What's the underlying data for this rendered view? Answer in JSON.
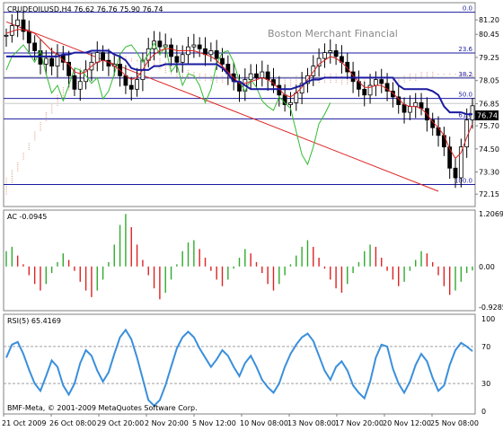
{
  "chart_data": {
    "type": "line",
    "panels": [
      {
        "name": "price",
        "header": "CRUDEOILUSD,H4  76.62 76.76 75.90 76.74",
        "watermark": "Boston Merchant Financial",
        "last_price": "76.74",
        "ylim": [
          71.6,
          82.0
        ],
        "y_ticks": [
          "81.20",
          "80.45",
          "79.25",
          "78.05",
          "76.85",
          "75.70",
          "74.50",
          "73.30",
          "72.15"
        ],
        "fib_levels": [
          {
            "label": "0.0",
            "value": 81.6
          },
          {
            "label": "23.6",
            "value": 79.48
          },
          {
            "label": "38.2",
            "value": 78.18
          },
          {
            "label": "50.0",
            "value": 77.12
          },
          {
            "label": "61.8",
            "value": 76.06
          },
          {
            "label": "100.0",
            "value": 72.65
          }
        ],
        "extra_levels": [
          78.22,
          76.86
        ],
        "close": [
          80.4,
          80.9,
          81.2,
          80.6,
          80.0,
          79.6,
          78.9,
          79.2,
          78.8,
          79.4,
          79.0,
          78.3,
          77.6,
          78.0,
          78.6,
          79.0,
          79.5,
          79.1,
          78.8,
          78.9,
          78.3,
          77.8,
          77.6,
          78.1,
          79.1,
          79.7,
          80.1,
          79.8,
          79.9,
          79.3,
          79.0,
          79.4,
          79.8,
          79.9,
          79.7,
          79.4,
          79.6,
          79.2,
          78.9,
          78.4,
          78.0,
          77.5,
          78.1,
          78.4,
          78.2,
          78.5,
          78.1,
          77.8,
          77.3,
          76.8,
          76.9,
          77.4,
          77.9,
          78.3,
          78.8,
          79.2,
          79.5,
          79.6,
          79.3,
          79.0,
          78.5,
          78.0,
          77.6,
          77.3,
          77.8,
          78.1,
          77.9,
          77.5,
          77.2,
          76.8,
          76.4,
          76.7,
          76.9,
          76.6,
          76.0,
          75.6,
          75.2,
          74.6,
          73.5,
          73.0,
          74.6,
          76.0,
          76.74
        ],
        "kijun": [
          79.3,
          79.3,
          79.3,
          79.3,
          79.3,
          79.3,
          79.3,
          79.3,
          79.3,
          79.3,
          79.4,
          79.4,
          79.5,
          79.5,
          79.5,
          79.6,
          79.6,
          79.6,
          79.6,
          79.4,
          79.3,
          79.1,
          78.7,
          78.6,
          78.6,
          78.6,
          78.8,
          78.8,
          78.9,
          78.9,
          78.9,
          78.9,
          78.9,
          78.9,
          78.9,
          78.9,
          78.9,
          78.9,
          78.7,
          78.4,
          78.0,
          78.0,
          77.8,
          77.6,
          77.6,
          77.6,
          77.6,
          77.6,
          77.6,
          77.6,
          77.6,
          77.7,
          77.8,
          78.0,
          78.1,
          78.1,
          78.2,
          78.2,
          78.2,
          78.2,
          78.2,
          78.2,
          78.2,
          78.2,
          78.2,
          78.2,
          78.2,
          78.2,
          78.2,
          77.8,
          77.6,
          77.6,
          77.6,
          77.6,
          77.6,
          77.5,
          77.3,
          76.7,
          76.4,
          76.4,
          76.4,
          76.3,
          76.3
        ],
        "tenkan": [
          80.5,
          80.6,
          80.7,
          80.7,
          80.6,
          80.5,
          80.2,
          79.9,
          79.6,
          79.4,
          79.1,
          78.9,
          78.5,
          78.4,
          78.5,
          78.8,
          79.0,
          79.1,
          79.0,
          78.8,
          78.6,
          78.3,
          78.1,
          78.2,
          78.6,
          79.1,
          79.4,
          79.6,
          79.7,
          79.7,
          79.6,
          79.6,
          79.6,
          79.6,
          79.5,
          79.4,
          79.3,
          79.1,
          78.8,
          78.5,
          78.2,
          77.9,
          77.9,
          78.0,
          78.1,
          78.2,
          78.1,
          77.9,
          77.6,
          77.3,
          77.2,
          77.4,
          77.7,
          78.1,
          78.5,
          78.9,
          79.1,
          79.3,
          79.2,
          79.0,
          78.7,
          78.3,
          78.0,
          77.7,
          77.7,
          77.8,
          77.8,
          77.6,
          77.4,
          77.1,
          76.8,
          76.7,
          76.7,
          76.6,
          76.3,
          75.9,
          75.6,
          75.2,
          74.5,
          74.0,
          74.3,
          75.1,
          75.8
        ],
        "chikou": [
          78.6,
          79.3,
          79.6,
          79.9,
          79.5,
          79.0,
          79.6,
          78.4,
          77.4,
          77.8,
          77.0,
          77.8,
          78.7,
          78.6,
          78.3,
          77.9,
          78.2,
          77.1,
          77.5,
          78.4,
          79.4,
          79.8,
          79.9,
          79.5,
          79.0,
          79.4,
          80.0,
          79.4,
          79.8,
          78.5,
          78.9,
          77.8,
          78.4,
          78.3,
          77.8,
          76.9,
          77.6,
          78.9,
          79.5,
          79.6,
          79.0,
          78.0,
          77.5,
          78.1,
          77.7,
          77.0,
          76.7,
          76.5,
          77.2,
          76.9,
          76.6,
          75.4,
          74.2,
          73.7,
          74.6,
          75.8,
          76.3,
          76.9
        ],
        "cloud_a": [
          73.0,
          73.4,
          73.8,
          74.3,
          74.8,
          75.4,
          75.9,
          76.4,
          76.8,
          77.3,
          77.7,
          78.0,
          78.4,
          78.7,
          78.9,
          79.1,
          79.3,
          79.4,
          79.5,
          79.5,
          79.4,
          79.3,
          79.2,
          79.1,
          79.2,
          79.3,
          79.3,
          79.2,
          79.0,
          78.8,
          78.6,
          78.6,
          78.6,
          78.5,
          78.4,
          78.4,
          78.3,
          78.3,
          78.3,
          78.2,
          78.2,
          78.1,
          78.2,
          78.3,
          78.4,
          78.4,
          78.4,
          78.3,
          78.3,
          78.2,
          78.2,
          78.3,
          78.3,
          78.3,
          78.3,
          78.4,
          78.4,
          78.4,
          78.4,
          78.3,
          78.3,
          78.2,
          78.2,
          78.2,
          78.1,
          78.1,
          78.1,
          78.2,
          78.2,
          78.2,
          78.3,
          78.4,
          78.4,
          78.5,
          78.5,
          78.5,
          78.4,
          78.4,
          78.3,
          78.3,
          78.2,
          78.2,
          78.2
        ],
        "cloud_b": [
          72.1,
          72.7,
          73.3,
          73.9,
          74.4,
          74.9,
          75.4,
          75.9,
          76.3,
          76.7,
          77.1,
          77.5,
          77.8,
          78.0,
          78.2,
          78.4,
          78.6,
          78.8,
          78.9,
          79.1,
          79.1,
          79.1,
          79.0,
          79.0,
          78.9,
          78.8,
          78.7,
          78.6,
          78.4,
          78.3,
          78.2,
          78.1,
          78.1,
          78.1,
          78.0,
          78.0,
          78.0,
          77.9,
          77.9,
          77.9,
          77.9,
          77.8,
          77.8,
          77.8,
          77.8,
          77.8,
          77.7,
          77.7,
          77.7,
          77.7,
          77.7,
          77.8,
          77.8,
          77.8,
          77.8,
          77.9,
          77.9,
          77.9,
          77.9,
          77.8,
          77.8,
          77.8,
          77.8,
          77.8,
          77.7,
          77.7,
          77.7,
          77.8,
          77.8,
          77.9,
          77.9,
          78.0,
          78.0,
          78.1,
          78.2,
          78.2,
          78.3,
          78.3,
          78.4,
          78.4,
          78.4,
          78.4,
          78.4
        ],
        "trendline": {
          "from": [
            0,
            81.1
          ],
          "to": [
            76,
            72.3
          ]
        }
      },
      {
        "name": "ac",
        "header": "AC -0.0945",
        "ylim": [
          -0.9285,
          1.2069
        ],
        "y_ticks": [
          "1.2069",
          "0.00",
          "-0.9285"
        ],
        "values": [
          0.35,
          0.45,
          0.25,
          0.05,
          -0.2,
          -0.4,
          -0.55,
          -0.4,
          -0.15,
          0.1,
          0.3,
          0.15,
          -0.1,
          -0.35,
          -0.55,
          -0.7,
          -0.55,
          -0.3,
          0.1,
          0.5,
          0.95,
          1.2,
          0.9,
          0.5,
          0.15,
          -0.2,
          -0.5,
          -0.75,
          -0.6,
          -0.3,
          0.05,
          0.35,
          0.55,
          0.6,
          0.4,
          0.2,
          -0.1,
          -0.3,
          -0.45,
          -0.3,
          -0.05,
          0.2,
          0.4,
          0.3,
          0.1,
          -0.15,
          -0.4,
          -0.55,
          -0.4,
          -0.2,
          0.05,
          0.25,
          0.45,
          0.6,
          0.45,
          0.2,
          -0.05,
          -0.3,
          -0.5,
          -0.6,
          -0.4,
          -0.15,
          0.1,
          0.35,
          0.5,
          0.45,
          0.2,
          -0.1,
          -0.3,
          -0.45,
          -0.35,
          -0.1,
          0.15,
          0.35,
          0.3,
          0.1,
          -0.2,
          -0.45,
          -0.65,
          -0.55,
          -0.35,
          -0.15,
          -0.09
        ]
      },
      {
        "name": "rsi",
        "header": "RSI(5) 65.4169",
        "ylim": [
          0,
          100
        ],
        "y_ticks": [
          "100",
          "70",
          "30",
          "0"
        ],
        "levels": [
          70,
          30
        ],
        "values": [
          58,
          72,
          75,
          62,
          45,
          30,
          22,
          38,
          55,
          48,
          28,
          18,
          30,
          52,
          66,
          60,
          44,
          32,
          42,
          62,
          80,
          88,
          78,
          58,
          35,
          12,
          6,
          12,
          28,
          48,
          68,
          80,
          86,
          80,
          68,
          58,
          48,
          56,
          66,
          60,
          48,
          38,
          52,
          60,
          48,
          34,
          26,
          20,
          30,
          48,
          62,
          72,
          80,
          84,
          76,
          60,
          44,
          34,
          48,
          54,
          44,
          28,
          20,
          14,
          32,
          58,
          72,
          70,
          46,
          30,
          20,
          32,
          50,
          62,
          54,
          36,
          22,
          28,
          50,
          66,
          74,
          70,
          65
        ]
      }
    ],
    "x_ticks": [
      "21 Oct 2009",
      "26 Oct 08:00",
      "29 Oct 20:00",
      "2 Nov 20:00",
      "5 Nov 12:00",
      "10 Nov 08:00",
      "13 Nov 08:00",
      "17 Nov 20:00",
      "20 Nov 12:00",
      "25 Nov 08:00"
    ],
    "copyright": "BMF-Meta, © 2001-2009 MetaQuotes Software Corp."
  }
}
